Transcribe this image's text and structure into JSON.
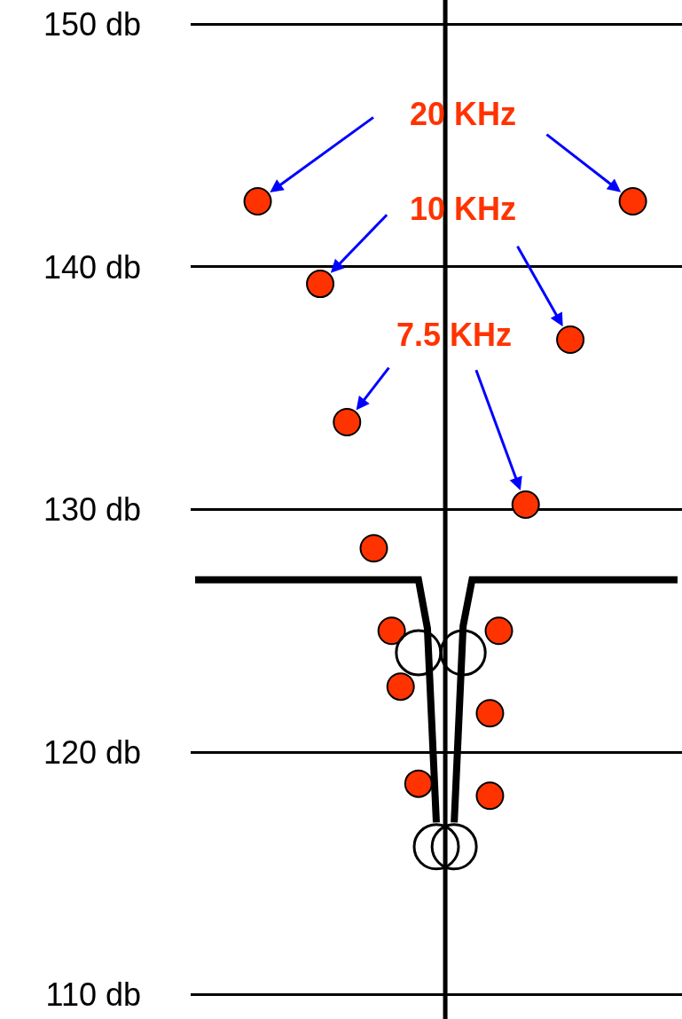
{
  "chart_data": {
    "type": "scatter",
    "categories": [
      null,
      null,
      null,
      null,
      null,
      null,
      null,
      null,
      null,
      null,
      null,
      null,
      null,
      null,
      null,
      null,
      null,
      null,
      null,
      null,
      null,
      null,
      null,
      null,
      null,
      null,
      null,
      null,
      null,
      null,
      null,
      null,
      null,
      null,
      null,
      null,
      null,
      null,
      null,
      null,
      null,
      null,
      null,
      null,
      null,
      null,
      null,
      null,
      null,
      null,
      null,
      null,
      null,
      null,
      null
    ],
    "series": [
      {
        "color": "#ff3300",
        "marker": "circle",
        "values": [
          null,
          null,
          null,
          null,
          null,
          null,
          null,
          142.7,
          null,
          null,
          null,
          null,
          null,
          null,
          139.3,
          null,
          null,
          133.6,
          null,
          null,
          128.4,
          null,
          125.0,
          122.7,
          null,
          118.7,
          null,
          null,
          null,
          null,
          null,
          null,
          null,
          121.6,
          125.0,
          null,
          null,
          130.2,
          null,
          null,
          null,
          null,
          137.0,
          null,
          null,
          null,
          null,
          null,
          null,
          142.7,
          null,
          null,
          null,
          null,
          null
        ]
      },
      {
        "color": "#ff3300",
        "marker": "circle",
        "values": [
          null,
          null,
          null,
          null,
          null,
          null,
          null,
          null,
          null,
          null,
          null,
          null,
          null,
          null,
          null,
          null,
          null,
          null,
          null,
          null,
          null,
          null,
          null,
          null,
          null,
          null,
          null,
          null,
          null,
          null,
          null,
          null,
          null,
          118.2,
          null,
          null,
          null,
          null,
          null,
          null,
          null,
          null,
          null,
          null,
          null,
          null,
          null,
          null,
          null,
          null,
          null,
          null,
          null,
          null,
          null
        ]
      },
      {
        "type": "line",
        "color": "#000000",
        "marker": "none",
        "values": [
          127.1,
          null,
          null,
          null,
          null,
          null,
          null,
          null,
          null,
          null,
          null,
          null,
          null,
          null,
          null,
          null,
          null,
          null,
          null,
          null,
          null,
          null,
          null,
          null,
          null,
          127.1,
          125.1,
          117.1,
          null,
          null,
          null,
          null,
          null,
          null,
          null,
          null,
          null,
          null,
          null,
          null,
          null,
          null,
          null,
          null,
          null,
          null,
          null,
          null,
          null,
          null,
          null,
          null,
          null,
          null,
          null
        ]
      },
      {
        "type": "line",
        "color": "#000000",
        "marker": "none",
        "values": [
          null,
          null,
          null,
          null,
          null,
          null,
          null,
          null,
          null,
          null,
          null,
          null,
          null,
          null,
          null,
          null,
          null,
          null,
          null,
          null,
          null,
          null,
          null,
          null,
          null,
          null,
          null,
          null,
          null,
          117.1,
          125.2,
          127.1,
          null,
          null,
          null,
          null,
          null,
          null,
          null,
          null,
          null,
          null,
          null,
          null,
          null,
          null,
          null,
          null,
          null,
          null,
          null,
          null,
          null,
          null,
          127.1
        ]
      },
      {
        "color": "#000000",
        "marker": "circle-open",
        "values": [
          null,
          null,
          null,
          null,
          null,
          null,
          null,
          null,
          null,
          null,
          null,
          null,
          null,
          null,
          null,
          null,
          null,
          null,
          null,
          null,
          null,
          null,
          null,
          null,
          null,
          124.1,
          null,
          116.1,
          null,
          116.1,
          124.1,
          null,
          null,
          null,
          null,
          null,
          null,
          null,
          null,
          null,
          null,
          null,
          null,
          null,
          null,
          null,
          null,
          null,
          null,
          null,
          null,
          null,
          null,
          null,
          null
        ]
      }
    ],
    "annotations": [
      "20 KHz",
      "10 KHz",
      "7.5 KHz"
    ],
    "ylim": [
      109,
      151
    ],
    "yticks": [
      {
        "value": 110,
        "label": "110 db"
      },
      {
        "value": 120,
        "label": "120 db"
      },
      {
        "value": 130,
        "label": "130 db"
      },
      {
        "value": 140,
        "label": "140 db"
      },
      {
        "value": 150,
        "label": "150 db"
      }
    ],
    "grid": "y",
    "tick_labels": "y"
  }
}
